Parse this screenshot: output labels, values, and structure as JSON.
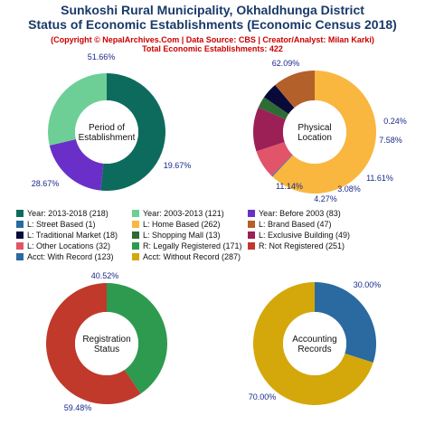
{
  "header": {
    "title_line1": "Sunkoshi Rural Municipality, Okhaldhunga District",
    "title_line2": "Status of Economic Establishments (Economic Census 2018)",
    "copyright": "(Copyright © NepalArchives.Com | Data Source: CBS | Creator/Analyst: Milan Karki)",
    "total": "Total Economic Establishments: 422"
  },
  "chart_data": [
    {
      "type": "pie",
      "center_label": [
        "Period of",
        "Establishment"
      ],
      "slices": [
        {
          "label": "Year: 2013-2018",
          "value": 218,
          "color": "#0d6b5e",
          "pct_label": "51.66%"
        },
        {
          "label": "Year: Before 2003",
          "value": 83,
          "color": "#6b2fc9",
          "pct_label": "19.67%"
        },
        {
          "label": "Year: 2003-2013",
          "value": 121,
          "color": "#6dcf96",
          "pct_label": "28.67%"
        }
      ]
    },
    {
      "type": "pie",
      "center_label": [
        "Physical",
        "Location"
      ],
      "slices": [
        {
          "label": "L: Home Based",
          "value": 262,
          "color": "#f9b740",
          "pct_label": "62.09%"
        },
        {
          "label": "L: Street Based",
          "value": 1,
          "color": "#2a6aa0",
          "pct_label": "0.24%"
        },
        {
          "label": "L: Other Locations",
          "value": 32,
          "color": "#e2546a",
          "pct_label": "7.58%"
        },
        {
          "label": "L: Exclusive Building",
          "value": 49,
          "color": "#9c1f56",
          "pct_label": "11.61%"
        },
        {
          "label": "L: Shopping Mall",
          "value": 13,
          "color": "#2f6b35",
          "pct_label": "3.08%"
        },
        {
          "label": "L: Traditional Market",
          "value": 18,
          "color": "#0a0a3a",
          "pct_label": "4.27%"
        },
        {
          "label": "L: Brand Based",
          "value": 47,
          "color": "#b4602a",
          "pct_label": "11.14%"
        }
      ]
    },
    {
      "type": "pie",
      "center_label": [
        "Registration",
        "Status"
      ],
      "slices": [
        {
          "label": "R: Legally Registered",
          "value": 171,
          "color": "#2e9a4f",
          "pct_label": "40.52%"
        },
        {
          "label": "R: Not Registered",
          "value": 251,
          "color": "#c0392b",
          "pct_label": "59.48%"
        }
      ]
    },
    {
      "type": "pie",
      "center_label": [
        "Accounting",
        "Records"
      ],
      "slices": [
        {
          "label": "Acct: With Record",
          "value": 123,
          "color": "#2a6aa0",
          "pct_label": "30.00%"
        },
        {
          "label": "Acct: Without Record",
          "value": 287,
          "color": "#d4a80a",
          "pct_label": "70.00%"
        }
      ]
    }
  ],
  "legend": [
    {
      "text": "Year: 2013-2018 (218)",
      "color": "#0d6b5e"
    },
    {
      "text": "Year: 2003-2013 (121)",
      "color": "#6dcf96"
    },
    {
      "text": "Year: Before 2003 (83)",
      "color": "#6b2fc9"
    },
    {
      "text": "L: Street Based (1)",
      "color": "#2a6aa0"
    },
    {
      "text": "L: Home Based (262)",
      "color": "#f9b740"
    },
    {
      "text": "L: Brand Based (47)",
      "color": "#b4602a"
    },
    {
      "text": "L: Traditional Market (18)",
      "color": "#0a0a3a"
    },
    {
      "text": "L: Shopping Mall (13)",
      "color": "#2f6b35"
    },
    {
      "text": "L: Exclusive Building (49)",
      "color": "#9c1f56"
    },
    {
      "text": "L: Other Locations (32)",
      "color": "#e2546a"
    },
    {
      "text": "R: Legally Registered (171)",
      "color": "#2e9a4f"
    },
    {
      "text": "R: Not Registered (251)",
      "color": "#c0392b"
    },
    {
      "text": "Acct: With Record (123)",
      "color": "#2a6aa0"
    },
    {
      "text": "Acct: Without Record (287)",
      "color": "#d4a80a"
    }
  ]
}
